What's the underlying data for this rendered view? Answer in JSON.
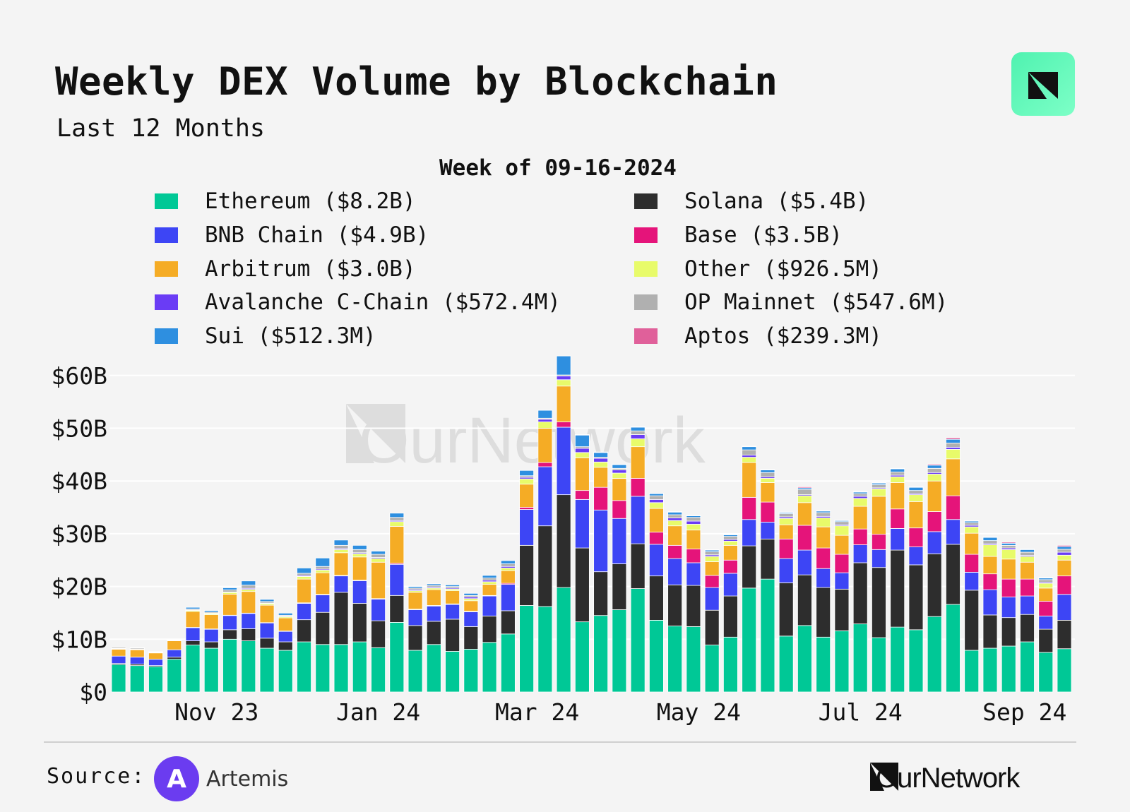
{
  "header": {
    "title": "Weekly DEX Volume by Blockchain",
    "subtitle": "Last 12 Months"
  },
  "legend": {
    "title": "Week of 09-16-2024"
  },
  "footer": {
    "source_label": "Source:",
    "source_name": "Artemis",
    "brand": "OurNetwork"
  },
  "watermark": "OurNetwork",
  "chart_data": {
    "type": "bar",
    "stacked": true,
    "title": "Weekly DEX Volume by Blockchain",
    "subtitle": "Last 12 Months",
    "unit": "USD billions",
    "ylim": [
      0,
      65
    ],
    "yticks": [
      0,
      10,
      20,
      30,
      40,
      50,
      60
    ],
    "ytick_labels": [
      "$0",
      "$10B",
      "$20B",
      "$30B",
      "$40B",
      "$50B",
      "$60B"
    ],
    "xtick_labels": [
      {
        "label": "Nov 23",
        "date": "2023-11-01"
      },
      {
        "label": "Jan 24",
        "date": "2024-01-01"
      },
      {
        "label": "Mar 24",
        "date": "2024-03-01"
      },
      {
        "label": "May 24",
        "date": "2024-05-01"
      },
      {
        "label": "Jul 24",
        "date": "2024-07-01"
      },
      {
        "label": "Sep 24",
        "date": "2024-09-01"
      }
    ],
    "grid": true,
    "legend_position": "top",
    "first_week": "2023-09-25",
    "last_week": "2024-09-16",
    "series": [
      {
        "name": "Ethereum",
        "legend_value": "($8.2B)",
        "color": "#00c896",
        "values": [
          5.2,
          5.0,
          4.8,
          6.2,
          8.9,
          8.3,
          10.0,
          9.7,
          8.3,
          7.9,
          9.5,
          9.0,
          9.0,
          9.5,
          8.4,
          13.2,
          7.9,
          9.0,
          7.7,
          8.1,
          9.4,
          11.0,
          16.4,
          16.2,
          19.8,
          13.3,
          14.5,
          15.6,
          19.6,
          13.6,
          12.5,
          12.4,
          8.9,
          10.4,
          19.7,
          21.4,
          10.6,
          12.6,
          10.4,
          11.6,
          12.9,
          10.3,
          12.3,
          11.8,
          14.3,
          16.6,
          7.9,
          8.3,
          8.7,
          9.5,
          7.5,
          8.2
        ]
      },
      {
        "name": "Solana",
        "legend_value": "($5.4B)",
        "color": "#2d2d2d",
        "values": [
          0.2,
          0.3,
          0.2,
          0.4,
          0.8,
          1.2,
          1.8,
          2.3,
          1.9,
          1.6,
          4.2,
          6.1,
          9.9,
          7.3,
          5.1,
          5.1,
          4.7,
          4.4,
          6.1,
          4.3,
          5.0,
          4.4,
          11.4,
          15.3,
          17.6,
          14.0,
          8.3,
          8.7,
          8.5,
          8.4,
          7.8,
          7.8,
          6.6,
          7.8,
          8.0,
          7.6,
          10.1,
          9.6,
          9.4,
          7.9,
          11.6,
          13.3,
          14.6,
          12.3,
          11.9,
          11.4,
          11.4,
          6.3,
          5.4,
          5.2,
          4.4,
          5.4
        ]
      },
      {
        "name": "BNB Chain",
        "legend_value": "($4.9B)",
        "color": "#3d45f5",
        "values": [
          1.4,
          1.3,
          1.2,
          1.4,
          2.5,
          2.4,
          2.7,
          2.9,
          2.9,
          2.0,
          3.1,
          3.3,
          3.1,
          4.3,
          4.1,
          5.9,
          3.0,
          2.9,
          2.8,
          2.8,
          3.8,
          5.0,
          6.8,
          11.2,
          12.8,
          9.2,
          11.7,
          8.6,
          9.0,
          6.0,
          5.0,
          4.3,
          4.3,
          4.3,
          5.0,
          3.2,
          4.6,
          4.7,
          3.6,
          3.1,
          3.4,
          3.4,
          4.1,
          3.4,
          4.2,
          4.7,
          3.4,
          4.8,
          3.9,
          3.5,
          2.5,
          4.9
        ]
      },
      {
        "name": "Base",
        "legend_value": "($3.5B)",
        "color": "#e5147a",
        "values": [
          0,
          0,
          0,
          0,
          0.05,
          0.05,
          0.05,
          0.05,
          0.05,
          0.05,
          0.1,
          0.1,
          0.1,
          0.1,
          0.1,
          0.2,
          0.1,
          0.1,
          0.1,
          0.1,
          0.1,
          0.2,
          0.4,
          0.8,
          1.0,
          1.7,
          4.3,
          3.4,
          3.4,
          2.3,
          2.5,
          2.6,
          2.3,
          2.5,
          4.2,
          3.8,
          3.7,
          4.7,
          3.9,
          3.5,
          3.0,
          2.9,
          3.7,
          3.6,
          3.8,
          4.5,
          3.4,
          3.0,
          3.4,
          3.2,
          2.8,
          3.5
        ]
      },
      {
        "name": "Arbitrum",
        "legend_value": "($3.0B)",
        "color": "#f5ac25",
        "values": [
          1.3,
          1.4,
          1.2,
          1.7,
          3.0,
          2.7,
          4.0,
          4.1,
          3.3,
          2.5,
          4.5,
          4.1,
          4.3,
          4.4,
          6.9,
          7.0,
          3.2,
          3.0,
          2.5,
          2.0,
          2.1,
          2.4,
          4.4,
          6.5,
          6.8,
          6.2,
          3.8,
          4.2,
          6.0,
          4.5,
          3.7,
          3.6,
          2.6,
          2.8,
          6.6,
          3.7,
          2.7,
          4.3,
          4.0,
          3.6,
          4.3,
          7.2,
          5.0,
          5.0,
          5.8,
          7.0,
          4.0,
          3.3,
          3.8,
          3.2,
          2.5,
          3.0
        ]
      },
      {
        "name": "Other",
        "legend_value": "($926.5M)",
        "color": "#e8fb6a",
        "values": [
          0.1,
          0.1,
          0.1,
          0.1,
          0.2,
          0.2,
          0.3,
          0.4,
          0.3,
          0.2,
          0.5,
          0.5,
          0.6,
          0.6,
          0.7,
          0.9,
          0.3,
          0.3,
          0.3,
          0.4,
          0.5,
          0.5,
          1.0,
          1.2,
          1.2,
          1.0,
          1.0,
          1.0,
          1.5,
          1.1,
          1.0,
          1.1,
          1.0,
          0.8,
          1.0,
          0.8,
          1.2,
          1.3,
          1.7,
          1.8,
          1.5,
          1.4,
          1.1,
          1.3,
          1.3,
          1.8,
          1.2,
          2.2,
          1.8,
          1.1,
          0.9,
          0.93
        ]
      },
      {
        "name": "Avalanche C-Chain",
        "legend_value": "($572.4M)",
        "color": "#6a3cf5",
        "values": [
          0.05,
          0.05,
          0.05,
          0.05,
          0.1,
          0.1,
          0.1,
          0.2,
          0.1,
          0.1,
          0.2,
          0.2,
          0.2,
          0.2,
          0.2,
          0.2,
          0.2,
          0.2,
          0.2,
          0.3,
          0.3,
          0.3,
          0.3,
          0.5,
          0.7,
          0.8,
          0.7,
          0.6,
          0.8,
          0.6,
          0.5,
          0.6,
          0.3,
          0.3,
          0.4,
          0.3,
          0.3,
          0.2,
          0.3,
          0.2,
          0.4,
          0.2,
          0.3,
          0.2,
          0.3,
          0.4,
          0.3,
          0.2,
          0.3,
          0.2,
          0.2,
          0.57
        ]
      },
      {
        "name": "OP Mainnet",
        "legend_value": "($547.6M)",
        "color": "#b0b0b0",
        "values": [
          0.2,
          0.2,
          0.1,
          0.1,
          0.2,
          0.2,
          0.4,
          0.6,
          0.3,
          0.2,
          0.4,
          0.5,
          0.6,
          0.6,
          0.6,
          0.6,
          0.3,
          0.3,
          0.3,
          0.3,
          0.4,
          0.5,
          0.3,
          0.2,
          0.2,
          0.3,
          0.2,
          0.3,
          0.7,
          0.7,
          0.6,
          0.7,
          0.6,
          0.6,
          1.0,
          0.8,
          0.6,
          1.0,
          0.7,
          0.6,
          0.5,
          0.6,
          0.6,
          0.6,
          0.8,
          0.8,
          0.5,
          0.6,
          0.5,
          0.6,
          0.5,
          0.55
        ]
      },
      {
        "name": "Sui",
        "legend_value": "($512.3M)",
        "color": "#2e8fe0",
        "values": [
          0,
          0.05,
          0,
          0.1,
          0.3,
          0.3,
          0.4,
          0.8,
          0.4,
          0.4,
          1.0,
          1.6,
          1.0,
          0.8,
          0.6,
          0.8,
          0.3,
          0.3,
          0.3,
          0.4,
          0.5,
          0.6,
          1.0,
          1.5,
          3.6,
          2.2,
          0.9,
          0.7,
          0.7,
          0.4,
          0.5,
          0.3,
          0.3,
          0.3,
          0.6,
          0.5,
          0.2,
          0.3,
          0.3,
          0.2,
          0.3,
          0.3,
          0.6,
          0.6,
          0.6,
          0.7,
          0.3,
          0.6,
          0.4,
          0.5,
          0.3,
          0.51
        ]
      },
      {
        "name": "Aptos",
        "legend_value": "($239.3M)",
        "color": "#e0609a",
        "values": [
          0,
          0,
          0,
          0,
          0,
          0,
          0,
          0,
          0,
          0,
          0,
          0,
          0,
          0,
          0,
          0,
          0,
          0,
          0,
          0,
          0,
          0,
          0,
          0,
          0,
          0.1,
          0.1,
          0.1,
          0.1,
          0.1,
          0.1,
          0.1,
          0.1,
          0.1,
          0.1,
          0.1,
          0.1,
          0.2,
          0.1,
          0.1,
          0.1,
          0.1,
          0.1,
          0.1,
          0.2,
          0.3,
          0.1,
          0.1,
          0.2,
          0.1,
          0.1,
          0.24
        ]
      }
    ]
  }
}
